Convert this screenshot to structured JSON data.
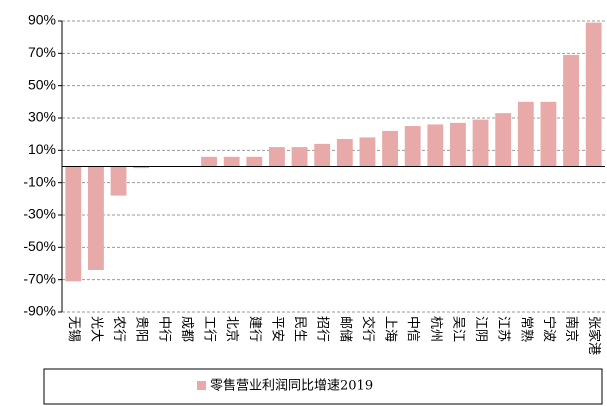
{
  "chart_data": {
    "type": "bar",
    "categories": [
      "无锡",
      "光大",
      "农行",
      "贵阳",
      "中行",
      "成都",
      "工行",
      "北京",
      "建行",
      "平安",
      "民生",
      "招行",
      "邮储",
      "交行",
      "上海",
      "中信",
      "杭州",
      "吴江",
      "江阴",
      "江苏",
      "常熟",
      "宁波",
      "南京",
      "张家港"
    ],
    "series": [
      {
        "name": "零售营业利润同比增速2019",
        "color": "#e8a9a9",
        "values": [
          -71,
          -64,
          -18,
          -1,
          0,
          0,
          6,
          6,
          6,
          12,
          12,
          14,
          17,
          18,
          22,
          25,
          26,
          27,
          29,
          33,
          40,
          40,
          69,
          89
        ]
      }
    ],
    "ylim": [
      -90,
      90
    ],
    "yticks": [
      {
        "value": -90,
        "label": "-90%"
      },
      {
        "value": -70,
        "label": "-70%"
      },
      {
        "value": -50,
        "label": "-50%"
      },
      {
        "value": -30,
        "label": "-30%"
      },
      {
        "value": -10,
        "label": "-10%"
      },
      {
        "value": 10,
        "label": "10%"
      },
      {
        "value": 30,
        "label": "30%"
      },
      {
        "value": 50,
        "label": "50%"
      },
      {
        "value": 70,
        "label": "70%"
      },
      {
        "value": 90,
        "label": "90%"
      }
    ],
    "grid": true,
    "legend": "bottom"
  }
}
